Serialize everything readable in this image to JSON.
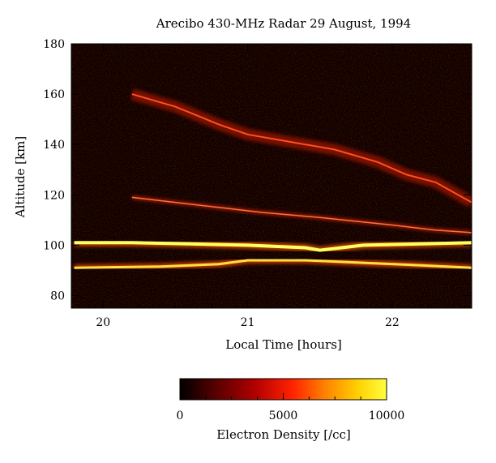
{
  "chart_data": {
    "type": "heatmap",
    "title": "Arecibo 430-MHz Radar   29 August, 1994",
    "xlabel": "Local Time [hours]",
    "ylabel": "Altitude [km]",
    "xlim": [
      19.78,
      22.55
    ],
    "ylim": [
      75,
      180
    ],
    "x_ticks": [
      20,
      21,
      22
    ],
    "y_ticks": [
      80,
      100,
      120,
      140,
      160,
      180
    ],
    "colorbar": {
      "label": "Electron Density [/cc]",
      "range": [
        0,
        10000
      ],
      "ticks": [
        0,
        5000,
        10000
      ],
      "colors": [
        "#000000",
        "#5a0000",
        "#b00000",
        "#ff2000",
        "#ff8000",
        "#ffd000",
        "#ffff40"
      ]
    },
    "features": [
      {
        "name": "",
        "points": [
          [
            19.8,
            101
          ],
          [
            20.2,
            101
          ],
          [
            20.6,
            100.5
          ],
          [
            21.0,
            100
          ],
          [
            21.4,
            99
          ],
          [
            21.5,
            98
          ],
          [
            21.8,
            100
          ],
          [
            22.2,
            100.5
          ],
          [
            22.55,
            101
          ]
        ]
      },
      {
        "name": "",
        "points": [
          [
            19.8,
            91
          ],
          [
            20.4,
            91.5
          ],
          [
            20.8,
            92.5
          ],
          [
            21.0,
            94
          ],
          [
            21.4,
            94
          ],
          [
            21.8,
            93
          ],
          [
            22.2,
            92
          ],
          [
            22.55,
            91
          ]
        ]
      },
      {
        "name": "",
        "points": [
          [
            20.2,
            119
          ],
          [
            20.5,
            117
          ],
          [
            20.8,
            115
          ],
          [
            21.1,
            113
          ],
          [
            21.5,
            111
          ],
          [
            22.0,
            108
          ],
          [
            22.3,
            106
          ],
          [
            22.55,
            105
          ]
        ]
      },
      {
        "name": "",
        "points": [
          [
            20.2,
            160
          ],
          [
            20.5,
            155
          ],
          [
            20.8,
            148
          ],
          [
            21.0,
            144
          ],
          [
            21.3,
            141
          ],
          [
            21.6,
            138
          ],
          [
            21.9,
            133
          ],
          [
            22.1,
            128
          ],
          [
            22.3,
            125
          ],
          [
            22.55,
            117
          ]
        ]
      }
    ]
  }
}
